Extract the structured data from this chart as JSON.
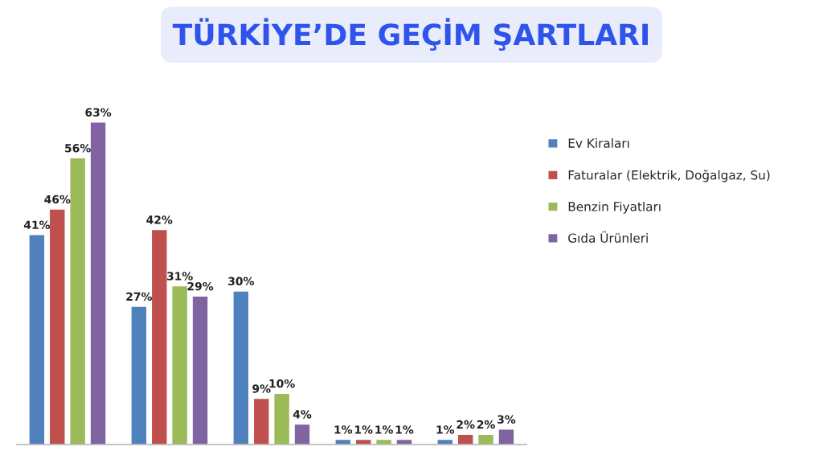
{
  "chart_data": {
    "type": "bar",
    "title": "TÜRKİYE’DE GEÇİM ŞARTLARI",
    "categories": [
      null,
      null,
      null,
      null,
      null
    ],
    "series": [
      {
        "name": "Ev Kiraları",
        "color": "#4f81bd",
        "values": [
          41,
          27,
          30,
          1,
          1
        ],
        "value_labels": [
          "41%",
          "27%",
          "30%",
          "1%",
          "1%"
        ]
      },
      {
        "name": "Faturalar (Elektrik, Doğalgaz, Su)",
        "color": "#c0504d",
        "values": [
          46,
          42,
          9,
          1,
          2
        ],
        "value_labels": [
          "46%",
          "42%",
          "9%",
          "1%",
          "2%"
        ]
      },
      {
        "name": "Benzin Fiyatları",
        "color": "#9bbb59",
        "values": [
          56,
          31,
          10,
          1,
          2
        ],
        "value_labels": [
          "56%",
          "31%",
          "10%",
          "1%",
          "2%"
        ]
      },
      {
        "name": "Gıda Ürünleri",
        "color": "#8064a2",
        "values": [
          63,
          29,
          4,
          1,
          3
        ],
        "value_labels": [
          "63%",
          "29%",
          "4%",
          "1%",
          "3%"
        ]
      }
    ],
    "legend": "right",
    "grid": false
  }
}
